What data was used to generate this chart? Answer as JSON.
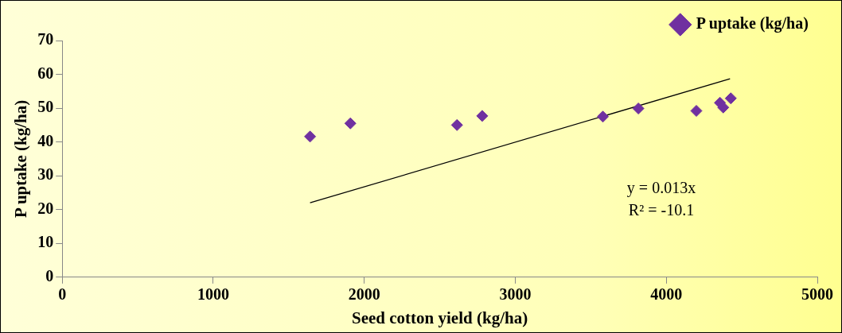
{
  "chart_data": {
    "type": "scatter",
    "xlabel": "Seed cotton yield (kg/ha)",
    "ylabel": "P uptake (kg/ha)",
    "xlim": [
      0,
      5000
    ],
    "xticks": [
      0,
      1000,
      2000,
      3000,
      4000,
      5000
    ],
    "ylim": [
      0,
      70
    ],
    "yticks": [
      0,
      10,
      20,
      30,
      40,
      50,
      60,
      70
    ],
    "grid": false,
    "legend": "top right",
    "marker": "diamond",
    "series": [
      {
        "name": "P uptake (kg/ha)",
        "color": "#7030a0",
        "x": [
          1641,
          1908,
          2614,
          2781,
          3580,
          3815,
          4199,
          4355,
          4377,
          4427
        ],
        "values": [
          41.6,
          45.5,
          45.0,
          47.7,
          47.5,
          49.9,
          49.2,
          51.6,
          50.2,
          52.9
        ]
      },
      {
        "type": "line",
        "color": "#000000",
        "marker": "none",
        "x": [
          1641,
          4422
        ],
        "values": [
          22.0,
          58.7
        ]
      }
    ],
    "annotations": [
      "y = 0.013x",
      "R² = -10.1"
    ]
  }
}
